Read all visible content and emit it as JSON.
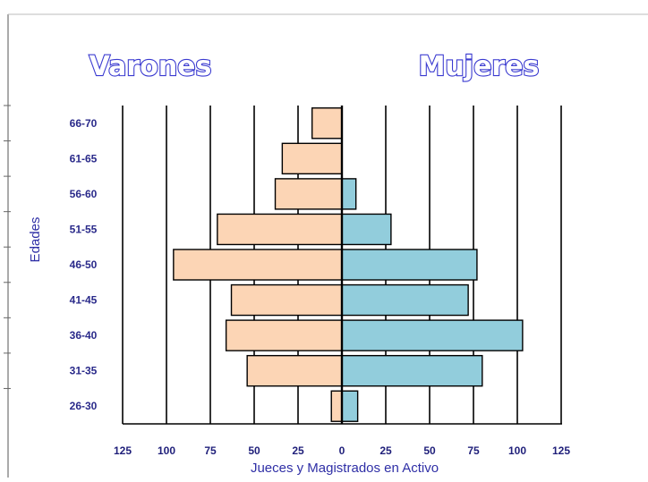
{
  "chart_data": {
    "type": "bar",
    "orientation": "horizontal-population-pyramid",
    "left_title": "Varones",
    "right_title": "Mujeres",
    "xlabel": "Jueces y Magistrados  en Activo",
    "ylabel": "Edades",
    "categories": [
      "66-70",
      "61-65",
      "56-60",
      "51-55",
      "46-50",
      "41-45",
      "36-40",
      "31-35",
      "26-30"
    ],
    "series": [
      {
        "name": "Varones",
        "side": "left",
        "values": [
          17,
          34,
          38,
          71,
          96,
          63,
          66,
          54,
          6
        ]
      },
      {
        "name": "Mujeres",
        "side": "right",
        "values": [
          0,
          0,
          8,
          28,
          77,
          72,
          103,
          80,
          9
        ]
      }
    ],
    "xticks": [
      "125",
      "100",
      "75",
      "50",
      "25",
      "0",
      "25",
      "50",
      "75",
      "100",
      "125"
    ],
    "xlim": [
      -125,
      125
    ],
    "grid": "vertical",
    "colors": {
      "left": "#fcd5b5",
      "right": "#92cddc",
      "title_outline": "#3a3ad0",
      "label": "#2a2a8a"
    }
  }
}
